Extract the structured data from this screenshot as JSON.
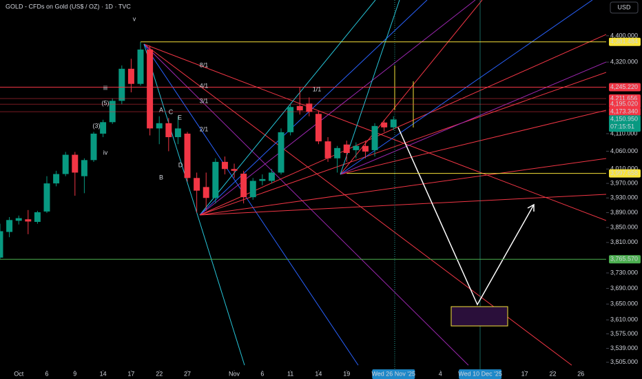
{
  "header": {
    "title": "GOLD - CFDs on Gold (US$ / OZ) · 1D · TVC",
    "currency": "USD"
  },
  "chart_data": {
    "type": "candlestick",
    "log_scale": true,
    "grid": false,
    "up_color": "#089981",
    "down_color": "#f23645",
    "xlim": [
      0,
      64.7
    ],
    "ylim": [
      3486,
      4511
    ],
    "x": [
      0,
      1,
      2,
      3,
      4,
      5,
      6,
      7,
      8,
      9,
      10,
      11,
      12,
      13,
      14,
      15,
      16,
      17,
      18,
      19,
      20,
      21,
      22,
      23,
      24,
      25,
      26,
      27,
      28,
      29,
      30,
      31,
      32,
      33,
      34,
      35,
      36,
      37,
      38,
      39,
      40,
      41,
      42
    ],
    "open": [
      3770,
      3838,
      3868,
      3872,
      3865,
      3893,
      3970,
      3996,
      4050,
      3990,
      4035,
      4110,
      4143,
      4205,
      4300,
      4255,
      4358,
      4125,
      4140,
      4100,
      4110,
      3985,
      3960,
      3930,
      4030,
      4010,
      3997,
      3932,
      3977,
      3977,
      4000,
      4114,
      4190,
      4197,
      4167,
      4088,
      4040,
      4079,
      4063,
      4075,
      4063,
      4142,
      4128
    ],
    "high": [
      3860,
      3878,
      3882,
      3897,
      3895,
      3990,
      4005,
      4058,
      4058,
      4040,
      4115,
      4150,
      4212,
      4310,
      4330,
      4381,
      4370,
      4160,
      4155,
      4160,
      4115,
      4000,
      4000,
      4040,
      4045,
      4025,
      4005,
      3985,
      3995,
      4010,
      4125,
      4195,
      4245,
      4215,
      4175,
      4100,
      4075,
      4090,
      4085,
      4090,
      4140,
      4150,
      4160
    ],
    "low": [
      3766,
      3824,
      3858,
      3832,
      3860,
      3889,
      3962,
      3990,
      3936,
      3943,
      4030,
      4100,
      4138,
      4195,
      4230,
      4250,
      4105,
      4080,
      4060,
      4080,
      3975,
      3890,
      3895,
      3915,
      3995,
      3985,
      3915,
      3925,
      3965,
      3970,
      3995,
      4105,
      4165,
      4160,
      4080,
      4030,
      4000,
      4030,
      4040,
      4040,
      4045,
      4115,
      4120
    ],
    "close": [
      3840,
      3870,
      3875,
      3866,
      3891,
      3970,
      3996,
      4050,
      4000,
      4035,
      4110,
      4143,
      4205,
      4300,
      4255,
      4358,
      4125,
      4140,
      4100,
      4125,
      3985,
      3950,
      3930,
      4030,
      4010,
      4005,
      3932,
      3977,
      3982,
      4000,
      4114,
      4187,
      4177,
      4173,
      4088,
      4040,
      4069,
      4055,
      4075,
      4059,
      4132,
      4128,
      4150.95
    ],
    "yticks": [
      {
        "value": 4400,
        "label": "4,400.000"
      },
      {
        "value": 4320,
        "label": "4,320.000"
      },
      {
        "value": 4110,
        "label": "4,110.000"
      },
      {
        "value": 4060,
        "label": "4,060.000"
      },
      {
        "value": 4010,
        "label": "4,010.000"
      },
      {
        "value": 3970,
        "label": "3,970.000"
      },
      {
        "value": 3930,
        "label": "3,930.000"
      },
      {
        "value": 3890,
        "label": "3,890.000"
      },
      {
        "value": 3850,
        "label": "3,850.000"
      },
      {
        "value": 3810,
        "label": "3,810.000"
      },
      {
        "value": 3730,
        "label": "3,730.000"
      },
      {
        "value": 3690,
        "label": "3,690.000"
      },
      {
        "value": 3650,
        "label": "3,650.000"
      },
      {
        "value": 3610,
        "label": "3,610.000"
      },
      {
        "value": 3575,
        "label": "3,575.000"
      },
      {
        "value": 3539,
        "label": "3,539.000"
      },
      {
        "value": 3505,
        "label": "3,505.000"
      }
    ],
    "xticks": [
      {
        "value": 2,
        "label": "Oct"
      },
      {
        "value": 5,
        "label": "6"
      },
      {
        "value": 8,
        "label": "9"
      },
      {
        "value": 11,
        "label": "14"
      },
      {
        "value": 14,
        "label": "17"
      },
      {
        "value": 17,
        "label": "22"
      },
      {
        "value": 20,
        "label": "27"
      },
      {
        "value": 25,
        "label": "Nov"
      },
      {
        "value": 28,
        "label": "6"
      },
      {
        "value": 31,
        "label": "11"
      },
      {
        "value": 34,
        "label": "14"
      },
      {
        "value": 37,
        "label": "19"
      },
      {
        "value": 47,
        "label": "4"
      },
      {
        "value": 56,
        "label": "17"
      },
      {
        "value": 59,
        "label": "22"
      },
      {
        "value": 62,
        "label": "26"
      }
    ],
    "price_lines": [
      {
        "value": 4381.484,
        "label": "4,381.484",
        "color": "#f7e33a"
      },
      {
        "value": 4245.22,
        "label": "4,245.220",
        "color": "#f23645"
      },
      {
        "value": 4211.656,
        "label": "4,211.656",
        "color": "#f23645"
      },
      {
        "value": 4195.02,
        "label": "4,195.020",
        "color": "#f23645"
      },
      {
        "value": 4173.34,
        "label": "4,173.340",
        "color": "#f23645"
      },
      {
        "value": 3997.658,
        "label": "3,997.658",
        "color": "#f7e33a"
      },
      {
        "value": 3765.57,
        "label": "3,765.570",
        "color": "#4caf50"
      }
    ],
    "last_price": {
      "value": 4150.95,
      "label": "4,150.950",
      "countdown": "07:15:51",
      "color": "#089981"
    },
    "date_markers": [
      {
        "value": 42,
        "label": "Wed 26 Nov '25"
      },
      {
        "value": 51.25,
        "label": "Wed 10 Dec '25"
      }
    ],
    "annotations": [
      "v",
      "iii",
      "iv",
      "(5)",
      "(3)",
      "A",
      "B",
      "C",
      "D",
      "E",
      "1/1",
      "2/1",
      "3/1",
      "4/1",
      "8/1"
    ]
  }
}
